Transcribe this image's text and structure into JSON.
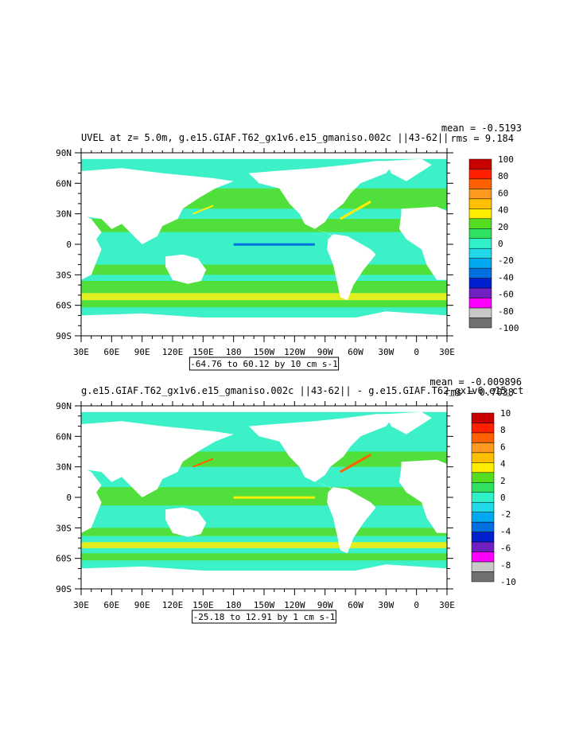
{
  "panels": [
    {
      "title": "UVEL at z=    5.0m, g.e15.GIAF.T62_gx1v6.e15_gmaniso.002c ||43-62||",
      "mean": "mean = -0.5193",
      "rms": "rms = 9.184",
      "range": "-64.76 to 60.12 by 10 cm s-1",
      "colorbar_labels": [
        "100",
        "80",
        "60",
        "40",
        "20",
        "0",
        "-20",
        "-40",
        "-60",
        "-80",
        "-100"
      ],
      "colorbar_colors": [
        "#c80000",
        "#ff2000",
        "#ff6000",
        "#ff9a20",
        "#ffc000",
        "#ffee00",
        "#55dd22",
        "#30e060",
        "#30f0c8",
        "#20d8e8",
        "#00a8f0",
        "#0070e0",
        "#0020d0",
        "#7020c0",
        "#ff00ff",
        "#c8c8c8",
        "#707070"
      ]
    },
    {
      "title": "g.e15.GIAF.T62_gx1v6.e15_gmaniso.002c ||43-62|| - g.e15.GIAF.T62_gx1v6.e15_ct",
      "mean": "mean = -0.009896",
      "rms": "rms = 0.7038",
      "range": "-25.18 to 12.91 by 1 cm s-1",
      "colorbar_labels": [
        "10",
        "8",
        "6",
        "4",
        "2",
        "0",
        "-2",
        "-4",
        "-6",
        "-8",
        "-10"
      ],
      "colorbar_colors": [
        "#c80000",
        "#ff2000",
        "#ff6000",
        "#ff9a20",
        "#ffc000",
        "#ffee00",
        "#55dd22",
        "#30e060",
        "#30f0c8",
        "#20d8e8",
        "#00a8f0",
        "#0070e0",
        "#0020d0",
        "#7020c0",
        "#ff00ff",
        "#c8c8c8",
        "#707070"
      ]
    }
  ],
  "axes": {
    "lon_labels": [
      "30E",
      "60E",
      "90E",
      "120E",
      "150E",
      "180",
      "150W",
      "120W",
      "90W",
      "60W",
      "30W",
      "0",
      "30E"
    ],
    "lat_labels": [
      "90N",
      "60N",
      "30N",
      "0",
      "30S",
      "60S",
      "90S"
    ]
  },
  "colors": {
    "ocean_main": "#3cf0c8",
    "ocean_alt": "#55dd22",
    "land": "#ffffff"
  }
}
